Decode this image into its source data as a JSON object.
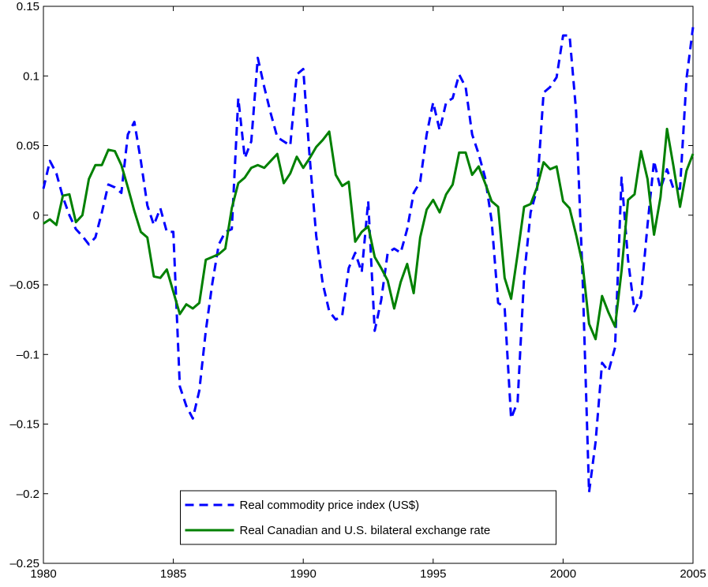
{
  "chart_data": {
    "type": "line",
    "x": [
      1980,
      1980.25,
      1980.5,
      1980.75,
      1981,
      1981.25,
      1981.5,
      1981.75,
      1982,
      1982.25,
      1982.5,
      1982.75,
      1983,
      1983.25,
      1983.5,
      1983.75,
      1984,
      1984.25,
      1984.5,
      1984.75,
      1985,
      1985.25,
      1985.5,
      1985.75,
      1986,
      1986.25,
      1986.5,
      1986.75,
      1987,
      1987.25,
      1987.5,
      1987.75,
      1988,
      1988.25,
      1988.5,
      1988.75,
      1989,
      1989.25,
      1989.5,
      1989.75,
      1990,
      1990.25,
      1990.5,
      1990.75,
      1991,
      1991.25,
      1991.5,
      1991.75,
      1992,
      1992.25,
      1992.5,
      1992.75,
      1993,
      1993.25,
      1993.5,
      1993.75,
      1994,
      1994.25,
      1994.5,
      1994.75,
      1995,
      1995.25,
      1995.5,
      1995.75,
      1996,
      1996.25,
      1996.5,
      1996.75,
      1997,
      1997.25,
      1997.5,
      1997.75,
      1998,
      1998.25,
      1998.5,
      1998.75,
      1999,
      1999.25,
      1999.5,
      1999.75,
      2000,
      2000.25,
      2000.5,
      2000.75,
      2001,
      2001.25,
      2001.5,
      2001.75,
      2002,
      2002.25,
      2002.5,
      2002.75,
      2003,
      2003.25,
      2003.5,
      2003.75,
      2004,
      2004.25,
      2004.5,
      2004.75,
      2005
    ],
    "series": [
      {
        "name": "Real commodity price index (US$)",
        "color": "#0000ff",
        "dashed": true,
        "values": [
          0.019,
          0.039,
          0.03,
          0.013,
          0,
          -0.01,
          -0.015,
          -0.021,
          -0.016,
          0.002,
          0.022,
          0.02,
          0.016,
          0.058,
          0.067,
          0.039,
          0.007,
          -0.007,
          0.005,
          -0.012,
          -0.012,
          -0.123,
          -0.137,
          -0.146,
          -0.126,
          -0.083,
          -0.049,
          -0.021,
          -0.012,
          -0.01,
          0.084,
          0.041,
          0.053,
          0.113,
          0.092,
          0.073,
          0.056,
          0.053,
          0.05,
          0.101,
          0.105,
          0.041,
          -0.015,
          -0.049,
          -0.069,
          -0.075,
          -0.072,
          -0.038,
          -0.027,
          -0.041,
          0.01,
          -0.083,
          -0.061,
          -0.027,
          -0.024,
          -0.027,
          -0.01,
          0.016,
          0.024,
          0.058,
          0.081,
          0.061,
          0.081,
          0.084,
          0.101,
          0.092,
          0.058,
          0.044,
          0.027,
          -0.004,
          -0.063,
          -0.066,
          -0.146,
          -0.134,
          -0.044,
          0.002,
          0.019,
          0.088,
          0.092,
          0.099,
          0.129,
          0.129,
          0.075,
          -0.044,
          -0.199,
          -0.163,
          -0.106,
          -0.112,
          -0.095,
          0.027,
          -0.032,
          -0.069,
          -0.058,
          -0.007,
          0.039,
          0.019,
          0.033,
          0.019,
          0.019,
          0.098,
          0.135
        ]
      },
      {
        "name": "Real Canadian and U.S. bilateral exchange rate",
        "color": "#008000",
        "dashed": false,
        "values": [
          -0.006,
          -0.003,
          -0.007,
          0.014,
          0.015,
          -0.005,
          0,
          0.026,
          0.036,
          0.036,
          0.047,
          0.046,
          0.036,
          0.02,
          0.003,
          -0.012,
          -0.016,
          -0.044,
          -0.045,
          -0.039,
          -0.055,
          -0.071,
          -0.064,
          -0.067,
          -0.063,
          -0.032,
          -0.03,
          -0.028,
          -0.024,
          0.005,
          0.023,
          0.027,
          0.034,
          0.036,
          0.034,
          0.039,
          0.044,
          0.023,
          0.03,
          0.042,
          0.034,
          0.041,
          0.049,
          0.054,
          0.06,
          0.029,
          0.021,
          0.024,
          -0.019,
          -0.012,
          -0.008,
          -0.03,
          -0.038,
          -0.047,
          -0.067,
          -0.048,
          -0.035,
          -0.056,
          -0.016,
          0.004,
          0.011,
          0.002,
          0.015,
          0.022,
          0.045,
          0.045,
          0.029,
          0.035,
          0.023,
          0.01,
          0.006,
          -0.045,
          -0.06,
          -0.028,
          0.006,
          0.008,
          0.02,
          0.038,
          0.033,
          0.035,
          0.01,
          0.005,
          -0.014,
          -0.035,
          -0.078,
          -0.089,
          -0.058,
          -0.07,
          -0.08,
          -0.04,
          0.011,
          0.015,
          0.046,
          0.026,
          -0.014,
          0.013,
          0.062,
          0.035,
          0.006,
          0.032,
          0.044
        ]
      }
    ],
    "xlim": [
      1980,
      2005
    ],
    "xticks": [
      1980,
      1985,
      1990,
      1995,
      2000,
      2005
    ],
    "ylim": [
      -0.25,
      0.15
    ],
    "yticks": [
      {
        "value": -0.25,
        "label": "–0.25"
      },
      {
        "value": -0.2,
        "label": "–0.2"
      },
      {
        "value": -0.15,
        "label": "–0.15"
      },
      {
        "value": -0.1,
        "label": "–0.1"
      },
      {
        "value": -0.05,
        "label": "–0.05"
      },
      0,
      0.05,
      0.1,
      0.15
    ],
    "grid": false,
    "legend": "lower center"
  }
}
